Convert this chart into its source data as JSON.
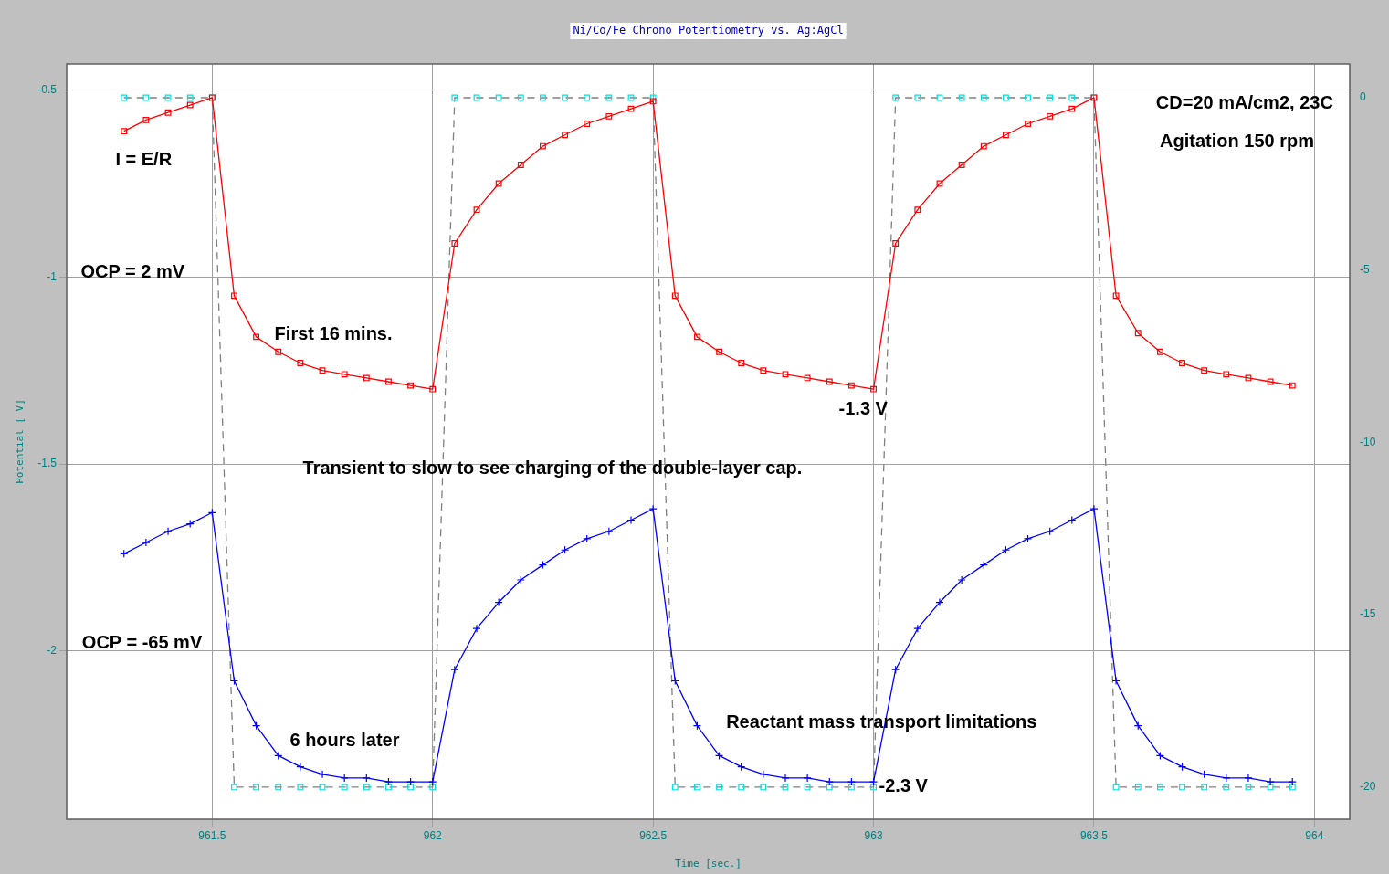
{
  "chart_data": {
    "type": "line",
    "title": "Ni/Co/Fe Chrono Potentiometry vs. Ag:AgCl",
    "xlabel": "Time [sec.]",
    "ylabel": "Potential [ V]",
    "x": [
      961.3,
      961.35,
      961.4,
      961.45,
      961.5,
      961.55,
      961.6,
      961.65,
      961.7,
      961.75,
      961.8,
      961.85,
      961.9,
      961.95,
      962,
      962.05,
      962.1,
      962.15,
      962.2,
      962.25,
      962.3,
      962.35,
      962.4,
      962.45,
      962.5,
      962.55,
      962.6,
      962.65,
      962.7,
      962.75,
      962.8,
      962.85,
      962.9,
      962.95,
      963,
      963.05,
      963.1,
      963.15,
      963.2,
      963.25,
      963.3,
      963.35,
      963.4,
      963.45,
      963.5,
      963.55,
      963.6,
      963.65,
      963.7,
      963.75,
      963.8,
      963.85,
      963.9,
      963.95
    ],
    "series": [
      {
        "type": "line",
        "color": "#808080",
        "marker": "none",
        "line_style": "dashed",
        "axis": "y2",
        "values": [
          0,
          0,
          0,
          0,
          0,
          -20,
          -20,
          -20,
          -20,
          -20,
          -20,
          -20,
          -20,
          -20,
          -20,
          0,
          0,
          0,
          0,
          0,
          0,
          0,
          0,
          0,
          0,
          -20,
          -20,
          -20,
          -20,
          -20,
          -20,
          -20,
          -20,
          -20,
          -20,
          0,
          0,
          0,
          0,
          0,
          0,
          0,
          0,
          0,
          0,
          -20,
          -20,
          -20,
          -20,
          -20,
          -20,
          -20,
          -20,
          -20
        ]
      },
      {
        "type": "scatter",
        "color": "#00e0e0",
        "marker": "square",
        "axis": "y2",
        "values": [
          0,
          0,
          0,
          0,
          0,
          -20,
          -20,
          -20,
          -20,
          -20,
          -20,
          -20,
          -20,
          -20,
          -20,
          0,
          0,
          0,
          0,
          0,
          0,
          0,
          0,
          0,
          0,
          -20,
          -20,
          -20,
          -20,
          -20,
          -20,
          -20,
          -20,
          -20,
          -20,
          0,
          0,
          0,
          0,
          0,
          0,
          0,
          0,
          0,
          0,
          -20,
          -20,
          -20,
          -20,
          -20,
          -20,
          -20,
          -20,
          -20
        ]
      },
      {
        "type": "line",
        "color": "#ff0000",
        "marker": "square",
        "line_style": "solid",
        "values": [
          -0.61,
          -0.58,
          -0.56,
          -0.54,
          -0.52,
          -1.05,
          -1.16,
          -1.2,
          -1.23,
          -1.25,
          -1.26,
          -1.27,
          -1.28,
          -1.29,
          -1.3,
          -0.91,
          -0.82,
          -0.75,
          -0.7,
          -0.65,
          -0.62,
          -0.59,
          -0.57,
          -0.55,
          -0.53,
          -1.05,
          -1.16,
          -1.2,
          -1.23,
          -1.25,
          -1.26,
          -1.27,
          -1.28,
          -1.29,
          -1.3,
          -0.91,
          -0.82,
          -0.75,
          -0.7,
          -0.65,
          -0.62,
          -0.59,
          -0.57,
          -0.55,
          -0.52,
          -1.05,
          -1.15,
          -1.2,
          -1.23,
          -1.25,
          -1.26,
          -1.27,
          -1.28,
          -1.29
        ]
      },
      {
        "type": "line",
        "color": "#0000ff",
        "marker": "cross",
        "line_style": "solid",
        "values": [
          -1.74,
          -1.71,
          -1.68,
          -1.66,
          -1.63,
          -2.08,
          -2.2,
          -2.28,
          -2.31,
          -2.33,
          -2.34,
          -2.34,
          -2.35,
          -2.35,
          -2.35,
          -2.05,
          -1.94,
          -1.87,
          -1.81,
          -1.77,
          -1.73,
          -1.7,
          -1.68,
          -1.65,
          -1.62,
          -2.08,
          -2.2,
          -2.28,
          -2.31,
          -2.33,
          -2.34,
          -2.34,
          -2.35,
          -2.35,
          -2.35,
          -2.05,
          -1.94,
          -1.87,
          -1.81,
          -1.77,
          -1.73,
          -1.7,
          -1.68,
          -1.65,
          -1.62,
          -2.08,
          -2.2,
          -2.28,
          -2.31,
          -2.33,
          -2.34,
          -2.34,
          -2.35,
          -2.35
        ]
      }
    ],
    "xlim": [
      961.17,
      964.08
    ],
    "xticks": [
      961.5,
      962,
      962.5,
      963,
      963.5,
      964
    ],
    "ylim": [
      -2.45,
      -0.43
    ],
    "yticks": [
      -0.5,
      -1,
      -1.5,
      -2
    ],
    "y2lim": [
      -20.93,
      0.98
    ],
    "y2ticks": [
      0,
      -5,
      -10,
      -15,
      -20
    ],
    "grid": true,
    "legend": false,
    "annotations": [
      "I = E/R",
      "OCP = 2 mV",
      "First 16 mins.",
      "Transient to slow to see charging of the double-layer cap.",
      "OCP = -65 mV",
      "6 hours later",
      "Reactant mass transport limitations",
      "CD=20 mA/cm2, 23C",
      "Agitation 150 rpm",
      {
        "text": "-1.3 V",
        "x": 963,
        "y": -1.3
      },
      {
        "text": "-2.3 V",
        "x": 963,
        "y": -2.35
      }
    ]
  }
}
